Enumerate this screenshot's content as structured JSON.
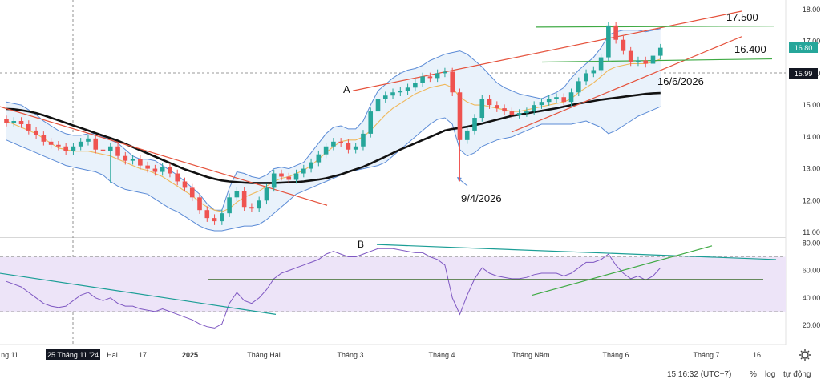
{
  "chart_data": [
    {
      "type": "candlestick",
      "x_ticks": [
        "ng 11",
        "25 Tháng 11 '24",
        "Hai",
        "17",
        "2025",
        "Tháng Hai",
        "Tháng 3",
        "Tháng 4",
        "Tháng Năm",
        "Tháng 6",
        "Tháng 7",
        "16"
      ],
      "y_ticks": [
        "18.00",
        "17.00",
        "16.00",
        "15.00",
        "14.00",
        "13.00",
        "12.00",
        "11.00"
      ],
      "ylim": [
        11,
        18
      ],
      "price_labels": {
        "current": "16.80",
        "crosshair": "15.99"
      },
      "annotations": {
        "resistance": "17.500",
        "support": "16.400",
        "date_upper": "16/6/2026",
        "date_lower": "9/4/2026",
        "channel_label": "A"
      },
      "series": [
        {
          "values": [
            14.45,
            14.5,
            14.4,
            14.2,
            14.05,
            13.85,
            13.75,
            13.7,
            13.55,
            13.7,
            13.85,
            13.95,
            13.6,
            13.55,
            13.7,
            13.4,
            13.25,
            13.3,
            13.1,
            13.0,
            12.9,
            13.05,
            12.85,
            12.6,
            12.4,
            12.1,
            11.7,
            11.45,
            11.35,
            11.6,
            12.1,
            12.3,
            11.8,
            11.75,
            12.0,
            12.4,
            12.85,
            12.75,
            12.65,
            12.85,
            13.0,
            13.2,
            13.45,
            13.7,
            13.85,
            13.8,
            13.6,
            13.7,
            14.1,
            14.8,
            15.2,
            15.3,
            15.4,
            15.45,
            15.55,
            15.7,
            15.9,
            15.85,
            16.0,
            16.05,
            15.4,
            13.9,
            14.2,
            14.6,
            15.2,
            15.0,
            14.9,
            14.8,
            14.7,
            14.75,
            14.8,
            15.0,
            15.1,
            15.2,
            15.25,
            15.1,
            15.4,
            15.75,
            16.0,
            16.1,
            16.5,
            17.5,
            17.05,
            16.7,
            16.35,
            16.4,
            16.3,
            16.55,
            16.8
          ]
        }
      ],
      "bands": [
        {
          "values": [
            15.1,
            15.05,
            15.0,
            14.85,
            14.7,
            14.5,
            14.35,
            14.2,
            14.1,
            14.05,
            14.05,
            14.1,
            14.1,
            14.0,
            13.9,
            13.8,
            13.6,
            13.4,
            13.3,
            13.3,
            13.25,
            13.1,
            12.95,
            12.8,
            12.6,
            12.4,
            12.2,
            11.9,
            11.7,
            11.7,
            12.4,
            12.9,
            12.85,
            12.75,
            12.7,
            12.8,
            13.0,
            13.05,
            13.0,
            13.1,
            13.2,
            13.5,
            13.8,
            14.1,
            14.3,
            14.35,
            14.25,
            14.25,
            14.5,
            15.0,
            15.45,
            15.65,
            15.85,
            16.0,
            16.1,
            16.15,
            16.25,
            16.4,
            16.5,
            16.6,
            16.65,
            16.7,
            16.6,
            16.4,
            16.2,
            15.95,
            15.7,
            15.55,
            15.45,
            15.35,
            15.3,
            15.25,
            15.2,
            15.3,
            15.4,
            15.55,
            15.85,
            16.1,
            16.3,
            16.5,
            16.8,
            17.2,
            17.3,
            17.35,
            17.35,
            17.35,
            17.3,
            17.35,
            17.4
          ]
        },
        {
          "values": [
            13.9,
            13.8,
            13.7,
            13.6,
            13.5,
            13.4,
            13.3,
            13.2,
            13.1,
            13.05,
            13.0,
            12.95,
            12.9,
            12.8,
            12.6,
            12.45,
            12.35,
            12.3,
            12.25,
            12.2,
            12.05,
            11.9,
            11.75,
            11.65,
            11.5,
            11.35,
            11.2,
            11.1,
            11.05,
            11.05,
            11.1,
            11.15,
            11.2,
            11.2,
            11.25,
            11.4,
            11.6,
            11.8,
            12.0,
            12.2,
            12.3,
            12.4,
            12.5,
            12.6,
            12.7,
            12.8,
            12.9,
            12.95,
            13.0,
            13.05,
            13.1,
            13.2,
            13.4,
            13.6,
            13.8,
            14.0,
            14.2,
            14.4,
            14.55,
            14.6,
            14.4,
            13.6,
            13.4,
            13.5,
            13.7,
            13.8,
            13.9,
            13.95,
            14.0,
            14.1,
            14.2,
            14.3,
            14.4,
            14.4,
            14.4,
            14.4,
            14.4,
            14.45,
            14.5,
            14.4,
            14.3,
            14.1,
            14.2,
            14.35,
            14.5,
            14.65,
            14.75,
            14.85,
            14.95
          ]
        }
      ],
      "ma_short": [
        14.5,
        14.4,
        14.3,
        14.2,
        14.1,
        13.95,
        13.8,
        13.65,
        13.6,
        13.55,
        13.55,
        13.55,
        13.5,
        13.45,
        13.4,
        13.3,
        13.2,
        13.1,
        13.0,
        12.95,
        12.85,
        12.75,
        12.6,
        12.45,
        12.3,
        12.15,
        11.95,
        11.8,
        11.7,
        11.65,
        11.75,
        11.95,
        12.1,
        12.2,
        12.3,
        12.45,
        12.6,
        12.7,
        12.75,
        12.85,
        12.95,
        13.1,
        13.3,
        13.5,
        13.7,
        13.85,
        13.9,
        13.9,
        14.0,
        14.2,
        14.45,
        14.7,
        14.9,
        15.05,
        15.2,
        15.35,
        15.45,
        15.55,
        15.6,
        15.65,
        15.55,
        15.25,
        15.1,
        15.0,
        15.0,
        14.95,
        14.9,
        14.85,
        14.8,
        14.8,
        14.85,
        14.9,
        14.95,
        15.0,
        15.05,
        15.1,
        15.2,
        15.4,
        15.55,
        15.7,
        15.9,
        16.1,
        16.2,
        16.25,
        16.3,
        16.3,
        16.3,
        16.35,
        16.45
      ],
      "ma_long": [
        14.88,
        14.87,
        14.84,
        14.8,
        14.75,
        14.68,
        14.6,
        14.52,
        14.44,
        14.36,
        14.28,
        14.2,
        14.12,
        14.04,
        13.96,
        13.88,
        13.78,
        13.68,
        13.58,
        13.48,
        13.38,
        13.28,
        13.18,
        13.08,
        12.98,
        12.9,
        12.82,
        12.74,
        12.68,
        12.63,
        12.6,
        12.58,
        12.56,
        12.55,
        12.55,
        12.55,
        12.55,
        12.56,
        12.57,
        12.58,
        12.6,
        12.63,
        12.66,
        12.7,
        12.76,
        12.82,
        12.9,
        12.98,
        13.06,
        13.16,
        13.27,
        13.38,
        13.49,
        13.6,
        13.7,
        13.8,
        13.9,
        14.0,
        14.1,
        14.2,
        14.25,
        14.28,
        14.32,
        14.37,
        14.42,
        14.48,
        14.54,
        14.6,
        14.66,
        14.7,
        14.74,
        14.78,
        14.82,
        14.86,
        14.9,
        14.95,
        15.0,
        15.05,
        15.09,
        15.13,
        15.17,
        15.2,
        15.23,
        15.26,
        15.29,
        15.32,
        15.35,
        15.37,
        15.38
      ]
    },
    {
      "type": "line",
      "y_ticks": [
        "80.00",
        "60.00",
        "40.00",
        "20.00"
      ],
      "ylim": [
        13,
        82
      ],
      "band": [
        30,
        70
      ],
      "annotations": {
        "channel_label": "B"
      },
      "series": [
        {
          "values": [
            52,
            50,
            48,
            44,
            40,
            36,
            34,
            33,
            34,
            38,
            42,
            44,
            40,
            38,
            40,
            36,
            34,
            34,
            32,
            31,
            30,
            32,
            30,
            28,
            26,
            24,
            21,
            19,
            18,
            21,
            36,
            44,
            38,
            36,
            40,
            46,
            54,
            58,
            60,
            62,
            64,
            66,
            68,
            72,
            74,
            72,
            70,
            70,
            72,
            74,
            76,
            76,
            76,
            75,
            74,
            73,
            73,
            70,
            68,
            64,
            40,
            28,
            42,
            54,
            62,
            58,
            56,
            55,
            54,
            54,
            55,
            57,
            58,
            58,
            58,
            56,
            58,
            62,
            66,
            66,
            68,
            72,
            64,
            58,
            54,
            56,
            53,
            56,
            62
          ]
        }
      ]
    }
  ],
  "colors": {
    "candle_up": "#26a69a",
    "candle_down": "#ef5350",
    "band": "#5b8bd6",
    "band_fill": "#e9f2fb",
    "ma_short": "#f0b85a",
    "ma_long": "#111111",
    "trend_red": "#e5533d",
    "trend_green": "#3faa44",
    "trend_teal": "#1b9e96",
    "rsi_line": "#7e57c2",
    "rsi_band": "#ede4f8"
  },
  "status": {
    "time": "15:16:32 (UTC+7)",
    "percent": "%",
    "log": "log",
    "auto": "tự động"
  }
}
